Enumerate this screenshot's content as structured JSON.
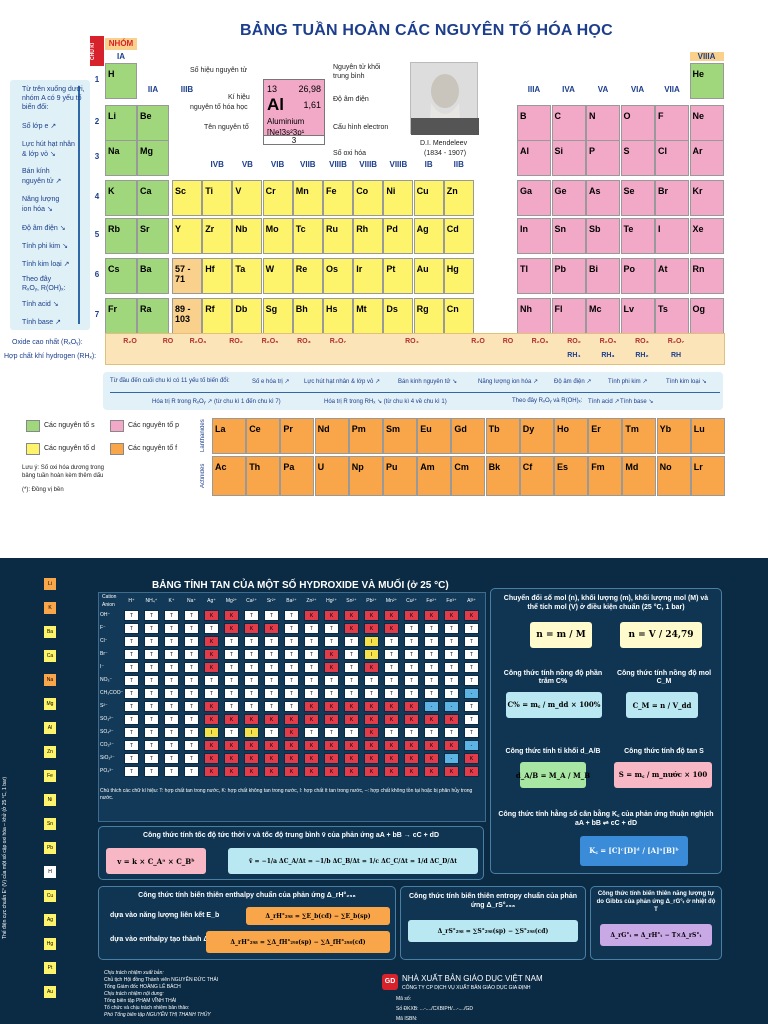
{
  "top": {
    "title": "BẢNG TUẦN HOÀN CÁC NGUYÊN TỐ HÓA HỌC",
    "chu_ki": "CHU KÌ",
    "nhom": "NHÓM",
    "groups": [
      "IA",
      "IIA",
      "IIIB",
      "IVB",
      "VB",
      "VIB",
      "VIIB",
      "VIIIB",
      "VIIIB",
      "VIIIB",
      "IB",
      "IIB",
      "IIIA",
      "IVA",
      "VA",
      "VIA",
      "VIIA",
      "VIIIA"
    ],
    "periods": [
      "1",
      "2",
      "3",
      "4",
      "5",
      "6",
      "7"
    ],
    "left_legend": [
      "Từ trên xuống dưới,",
      "nhóm A có 9 yếu tố",
      "biến đổi:",
      "Số lớp e ↗",
      "Lực hút hạt nhân",
      "& lớp vỏ ↘",
      "Bán kính",
      "nguyên tử ↗",
      "Năng lượng",
      "ion hóa ↘",
      "Độ âm điện ↘",
      "Tính phi kim ↘",
      "Tính kim loại ↗",
      "Theo đây",
      "RₓOᵧ, R(OH)ₓ:",
      "Tính acid ↘",
      "Tính base ↗"
    ],
    "sample": {
      "z": "13",
      "mass": "26,98",
      "sym": "Al",
      "en": "1,61",
      "name": "Aluminium",
      "config": "[Ne]3s²3p¹",
      "ox": "3"
    },
    "callouts": [
      "Số hiệu nguyên tử",
      "Kí hiệu",
      "nguyên tố hóa học",
      "Tên nguyên tố",
      "Nguyên tử khối",
      "trung bình",
      "Độ âm điện",
      "Cấu hình electron",
      "Số oxi hóa"
    ],
    "mendeleev": [
      "D.I. Mendeleev",
      "(1834 - 1907)"
    ],
    "row1": [
      "H",
      "He"
    ],
    "row2": [
      "Li",
      "Be",
      "B",
      "C",
      "N",
      "O",
      "F",
      "Ne"
    ],
    "row3": [
      "Na",
      "Mg",
      "Al",
      "Si",
      "P",
      "S",
      "Cl",
      "Ar"
    ],
    "row4": [
      "K",
      "Ca",
      "Sc",
      "Ti",
      "V",
      "Cr",
      "Mn",
      "Fe",
      "Co",
      "Ni",
      "Cu",
      "Zn",
      "Ga",
      "Ge",
      "As",
      "Se",
      "Br",
      "Kr"
    ],
    "row5": [
      "Rb",
      "Sr",
      "Y",
      "Zr",
      "Nb",
      "Mo",
      "Tc",
      "Ru",
      "Rh",
      "Pd",
      "Ag",
      "Cd",
      "In",
      "Sn",
      "Sb",
      "Te",
      "I",
      "Xe"
    ],
    "row6": [
      "Cs",
      "Ba",
      "57 - 71",
      "Hf",
      "Ta",
      "W",
      "Re",
      "Os",
      "Ir",
      "Pt",
      "Au",
      "Hg",
      "Tl",
      "Pb",
      "Bi",
      "Po",
      "At",
      "Rn"
    ],
    "row7": [
      "Fr",
      "Ra",
      "89 - 103",
      "Rf",
      "Db",
      "Sg",
      "Bh",
      "Hs",
      "Mt",
      "Ds",
      "Rg",
      "Cn",
      "Nh",
      "Fl",
      "Mc",
      "Lv",
      "Ts",
      "Og"
    ],
    "lanth_label": "Lanthanides",
    "act_label": "Actinides",
    "lanthanides": [
      "La",
      "Ce",
      "Pr",
      "Nd",
      "Pm",
      "Sm",
      "Eu",
      "Gd",
      "Tb",
      "Dy",
      "Ho",
      "Er",
      "Tm",
      "Yb",
      "Lu"
    ],
    "actinides": [
      "Ac",
      "Th",
      "Pa",
      "U",
      "Np",
      "Pu",
      "Am",
      "Cm",
      "Bk",
      "Cf",
      "Es",
      "Fm",
      "Md",
      "No",
      "Lr"
    ],
    "oxide_label": "Oxide cao nhất (RₓOᵧ):",
    "hydride_label": "Hợp chất khí hydrogen (RHₓ):",
    "oxides": [
      "R₂O",
      "RO",
      "R₂O₃",
      "RO₂",
      "R₂O₅",
      "RO₃",
      "R₂O₇",
      "RO₄",
      "R₂O",
      "RO",
      "R₂O₃",
      "RO₂",
      "R₂O₅",
      "RO₃",
      "R₂O₇"
    ],
    "hydrides": [
      "RH₄",
      "RH₃",
      "RH₂",
      "RH"
    ],
    "trend1": [
      "Từ đầu đến cuối chu kì có 11 yếu tố biến đổi:",
      "Số e hóa trị ↗",
      "Lực hút hạt nhân & lớp vỏ ↗",
      "Bán kính nguyên tử ↘",
      "Năng lượng ion hóa ↗",
      "Độ âm điện ↗",
      "Tính phi kim ↗",
      "Tính kim loại ↘"
    ],
    "trend2": [
      "Hóa trị R trong RₓOᵧ ↗ (từ chu kì 1 đến chu kì 7)",
      "Hóa trị R trong RHₓ ↘ (từ chu kì 4 về chu kì 1)",
      "Theo đây RₓOᵧ và R(OH)ₓ:",
      "Tính acid ↗",
      "Tính base ↘"
    ],
    "key": [
      "Các nguyên tố s",
      "Các nguyên tố p",
      "Các nguyên tố d",
      "Các nguyên tố f"
    ],
    "note": [
      "Lưu ý: Số oxi hóa dương trong",
      "bảng tuần hoàn kèm thêm dấu",
      "(*): Đồng vị bền"
    ],
    "colors": {
      "s": "#a0d67c",
      "p": "#f2a9c7",
      "d": "#fef46b",
      "f": "#f9a54a"
    }
  },
  "bottom": {
    "title": "BẢNG TÍNH TAN CỦA MỘT SỐ HYDROXIDE VÀ MUỐI (ở 25 °C)",
    "cation_label": "Cation",
    "anion_label": "Anion",
    "cations": [
      "H⁺",
      "NH₄⁺",
      "K⁺",
      "Na⁺",
      "Ag⁺",
      "Mg²⁺",
      "Ca²⁺",
      "Sr²⁺",
      "Ba²⁺",
      "Zn²⁺",
      "Hg²⁺",
      "Sn²⁺",
      "Pb²⁺",
      "Mn²⁺",
      "Cu²⁺",
      "Fe²⁺",
      "Fe³⁺",
      "Al³⁺"
    ],
    "anions": [
      "OH⁻",
      "F⁻",
      "Cl⁻",
      "Br⁻",
      "I⁻",
      "NO₃⁻",
      "CH₃COO⁻",
      "S²⁻",
      "SO₃²⁻",
      "SO₄²⁻",
      "CO₃²⁻",
      "SiO₃²⁻",
      "PO₄³⁻"
    ],
    "side_elements": [
      "Li",
      "K",
      "Ba",
      "Ca",
      "Na",
      "Mg",
      "Al",
      "Zn",
      "Fe",
      "Ni",
      "Sn",
      "Pb",
      "H",
      "Cu",
      "Ag",
      "Hg",
      "Pt",
      "Au"
    ],
    "side_label": "Thế điện cực chuẩn E° (V) của một số cặp oxi hóa – khử (ở 25 °C, 1 bar)",
    "legend_note": "Chú thích các chữ kí hiệu: T: hợp chất tan trong nước, K: hợp chất không tan trong nước, I: hợp chất ít tan trong nước, –: hợp chất không tồn tại hoặc bị phân hủy trong nước.",
    "boxes": {
      "mol_title": "Chuyển đổi số mol (n), khối lượng (m), khối lượng mol (M) và thể tích mol (V) ở điều kiện chuẩn (25 °C, 1 bar)",
      "f_nm": "n = m / M",
      "f_nv": "n = V / 24,79",
      "cpct_title": "Công thức tính nồng độ phần trăm C%",
      "cpct": "C% = m꜀ / m_dd × 100%",
      "cm_title": "Công thức tính nồng độ mol C_M",
      "cm": "C_M = n / V_dd",
      "dab_title": "Công thức tính tỉ khối d_A/B",
      "dab": "d_A/B = M_A / M_B",
      "s_title": "Công thức tính độ tan S",
      "s": "S = m꜀ / m_nước × 100",
      "kc_title": "Công thức tính hằng số cân bằng K꜀ của phản ứng thuận nghịch aA + bB ⇌ cC + dD",
      "kc": "K꜀ = [C]ᶜ[D]ᵈ / [A]ᵃ[B]ᵇ",
      "rate_title": "Công thức tính tốc độ tức thời v và tốc độ trung bình v̄ của phản ứng aA + bB → cC + dD",
      "rate1": "v = k × C_Aᵃ × C_Bᵇ",
      "rate2": "v̄ = −1/a ΔC_A/Δt = −1/b ΔC_B/Δt = 1/c ΔC_C/Δt = 1/d ΔC_D/Δt",
      "enth_title": "Công thức tính biến thiên enthalpy chuẩn của phản ứng Δ_rH°₂₉₈",
      "enth_a": "dựa vào năng lượng liên kết E_b",
      "enth_a_f": "Δ_rH°₂₉₈ = ∑E_b(cđ) − ∑E_b(sp)",
      "enth_b": "dựa vào enthalpy tạo thành Δ_fH°₂₉₈",
      "enth_b_f": "Δ_rH°₂₉₈ = ∑Δ_fH°₂₉₈(sp) − ∑Δ_fH°₂₉₈(cđ)",
      "entr_title": "Công thức tính biến thiên entropy chuẩn của phản ứng Δ_rS°₂₉₈",
      "entr_f": "Δ_rS°₂₉₈ = ∑S°₂₉₈(sp) − ∑S°₂₉₈(cđ)",
      "gibbs_title": "Công thức tính biến thiên năng lượng tự do Gibbs của phản ứng Δ_rG°ₜ ở nhiệt độ T",
      "gibbs_f": "Δ_rG°ₜ = Δ_rH°ₜ − T×Δ_rS°ₜ"
    },
    "credits": [
      "Chịu trách nhiệm xuất bản:",
      "Chủ tịch Hội đồng Thành viên NGUYỄN ĐỨC THÁI",
      "Tổng Giám đốc HOÀNG LÊ BÁCH",
      "Chịu trách nhiệm nội dung:",
      "Tổng biên tập PHẠM VĨNH THÁI",
      "Tổ chức và chịu trách nhiệm bản thảo:",
      "Phó Tổng biên tập NGUYỄN THỊ THANH THỦY"
    ],
    "publisher": "NHÀ XUẤT BẢN GIÁO DỤC VIỆT NAM",
    "company": "CÔNG TY CP DỊCH VỤ XUẤT BẢN GIÁO DỤC GIA ĐỊNH",
    "codes": [
      "Mã số:",
      "Số ĐKXB: ...-..../CXBIPH/...-..../GD",
      "Mã ISBN:"
    ]
  }
}
